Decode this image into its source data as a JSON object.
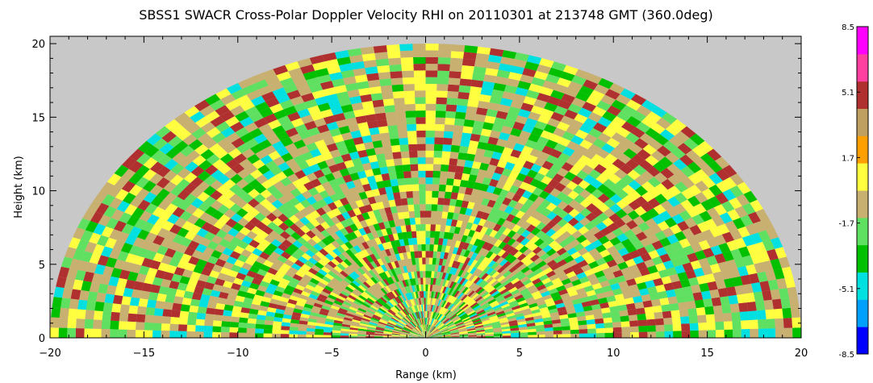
{
  "chart_data": {
    "type": "heatmap",
    "title": "SBSS1 SWACR Cross-Polar Doppler Velocity RHI on 20110301 at 213748 GMT (360.0deg)",
    "xlabel": "Range (km)",
    "ylabel": "Height (km)",
    "xlim": [
      -20,
      20
    ],
    "ylim": [
      0,
      20.5
    ],
    "x_ticks": [
      "−20",
      "−15",
      "−10",
      "−5",
      "0",
      "5",
      "10",
      "15",
      "20"
    ],
    "x_tick_values": [
      -20,
      -15,
      -10,
      -5,
      0,
      5,
      10,
      15,
      20
    ],
    "y_ticks": [
      "0",
      "5",
      "10",
      "15",
      "20"
    ],
    "y_tick_values": [
      0,
      5,
      10,
      15,
      20
    ],
    "data_extent": {
      "max_range_km": 20,
      "min_elevation_deg": 0,
      "max_elevation_deg": 180
    },
    "background_color": "#c8c8c8",
    "colorbar": {
      "min": -8.5,
      "max": 8.5,
      "tick_labels": [
        "8.5",
        "5.1",
        "1.7",
        "-1.7",
        "-5.1",
        "-8.5"
      ],
      "tick_values": [
        8.5,
        5.1,
        1.7,
        -1.7,
        -5.1,
        -8.5
      ],
      "colors": [
        "#0000ff",
        "#00a0ff",
        "#00e0e0",
        "#00c000",
        "#60e060",
        "#c8b070",
        "#ffff40",
        "#ffa000",
        "#c0a060",
        "#b03030",
        "#ff40a0",
        "#ff00ff"
      ]
    },
    "dominant_colors": [
      "#c8b070",
      "#ffff40",
      "#60e060",
      "#00c000",
      "#b03030",
      "#00e0e0"
    ]
  }
}
